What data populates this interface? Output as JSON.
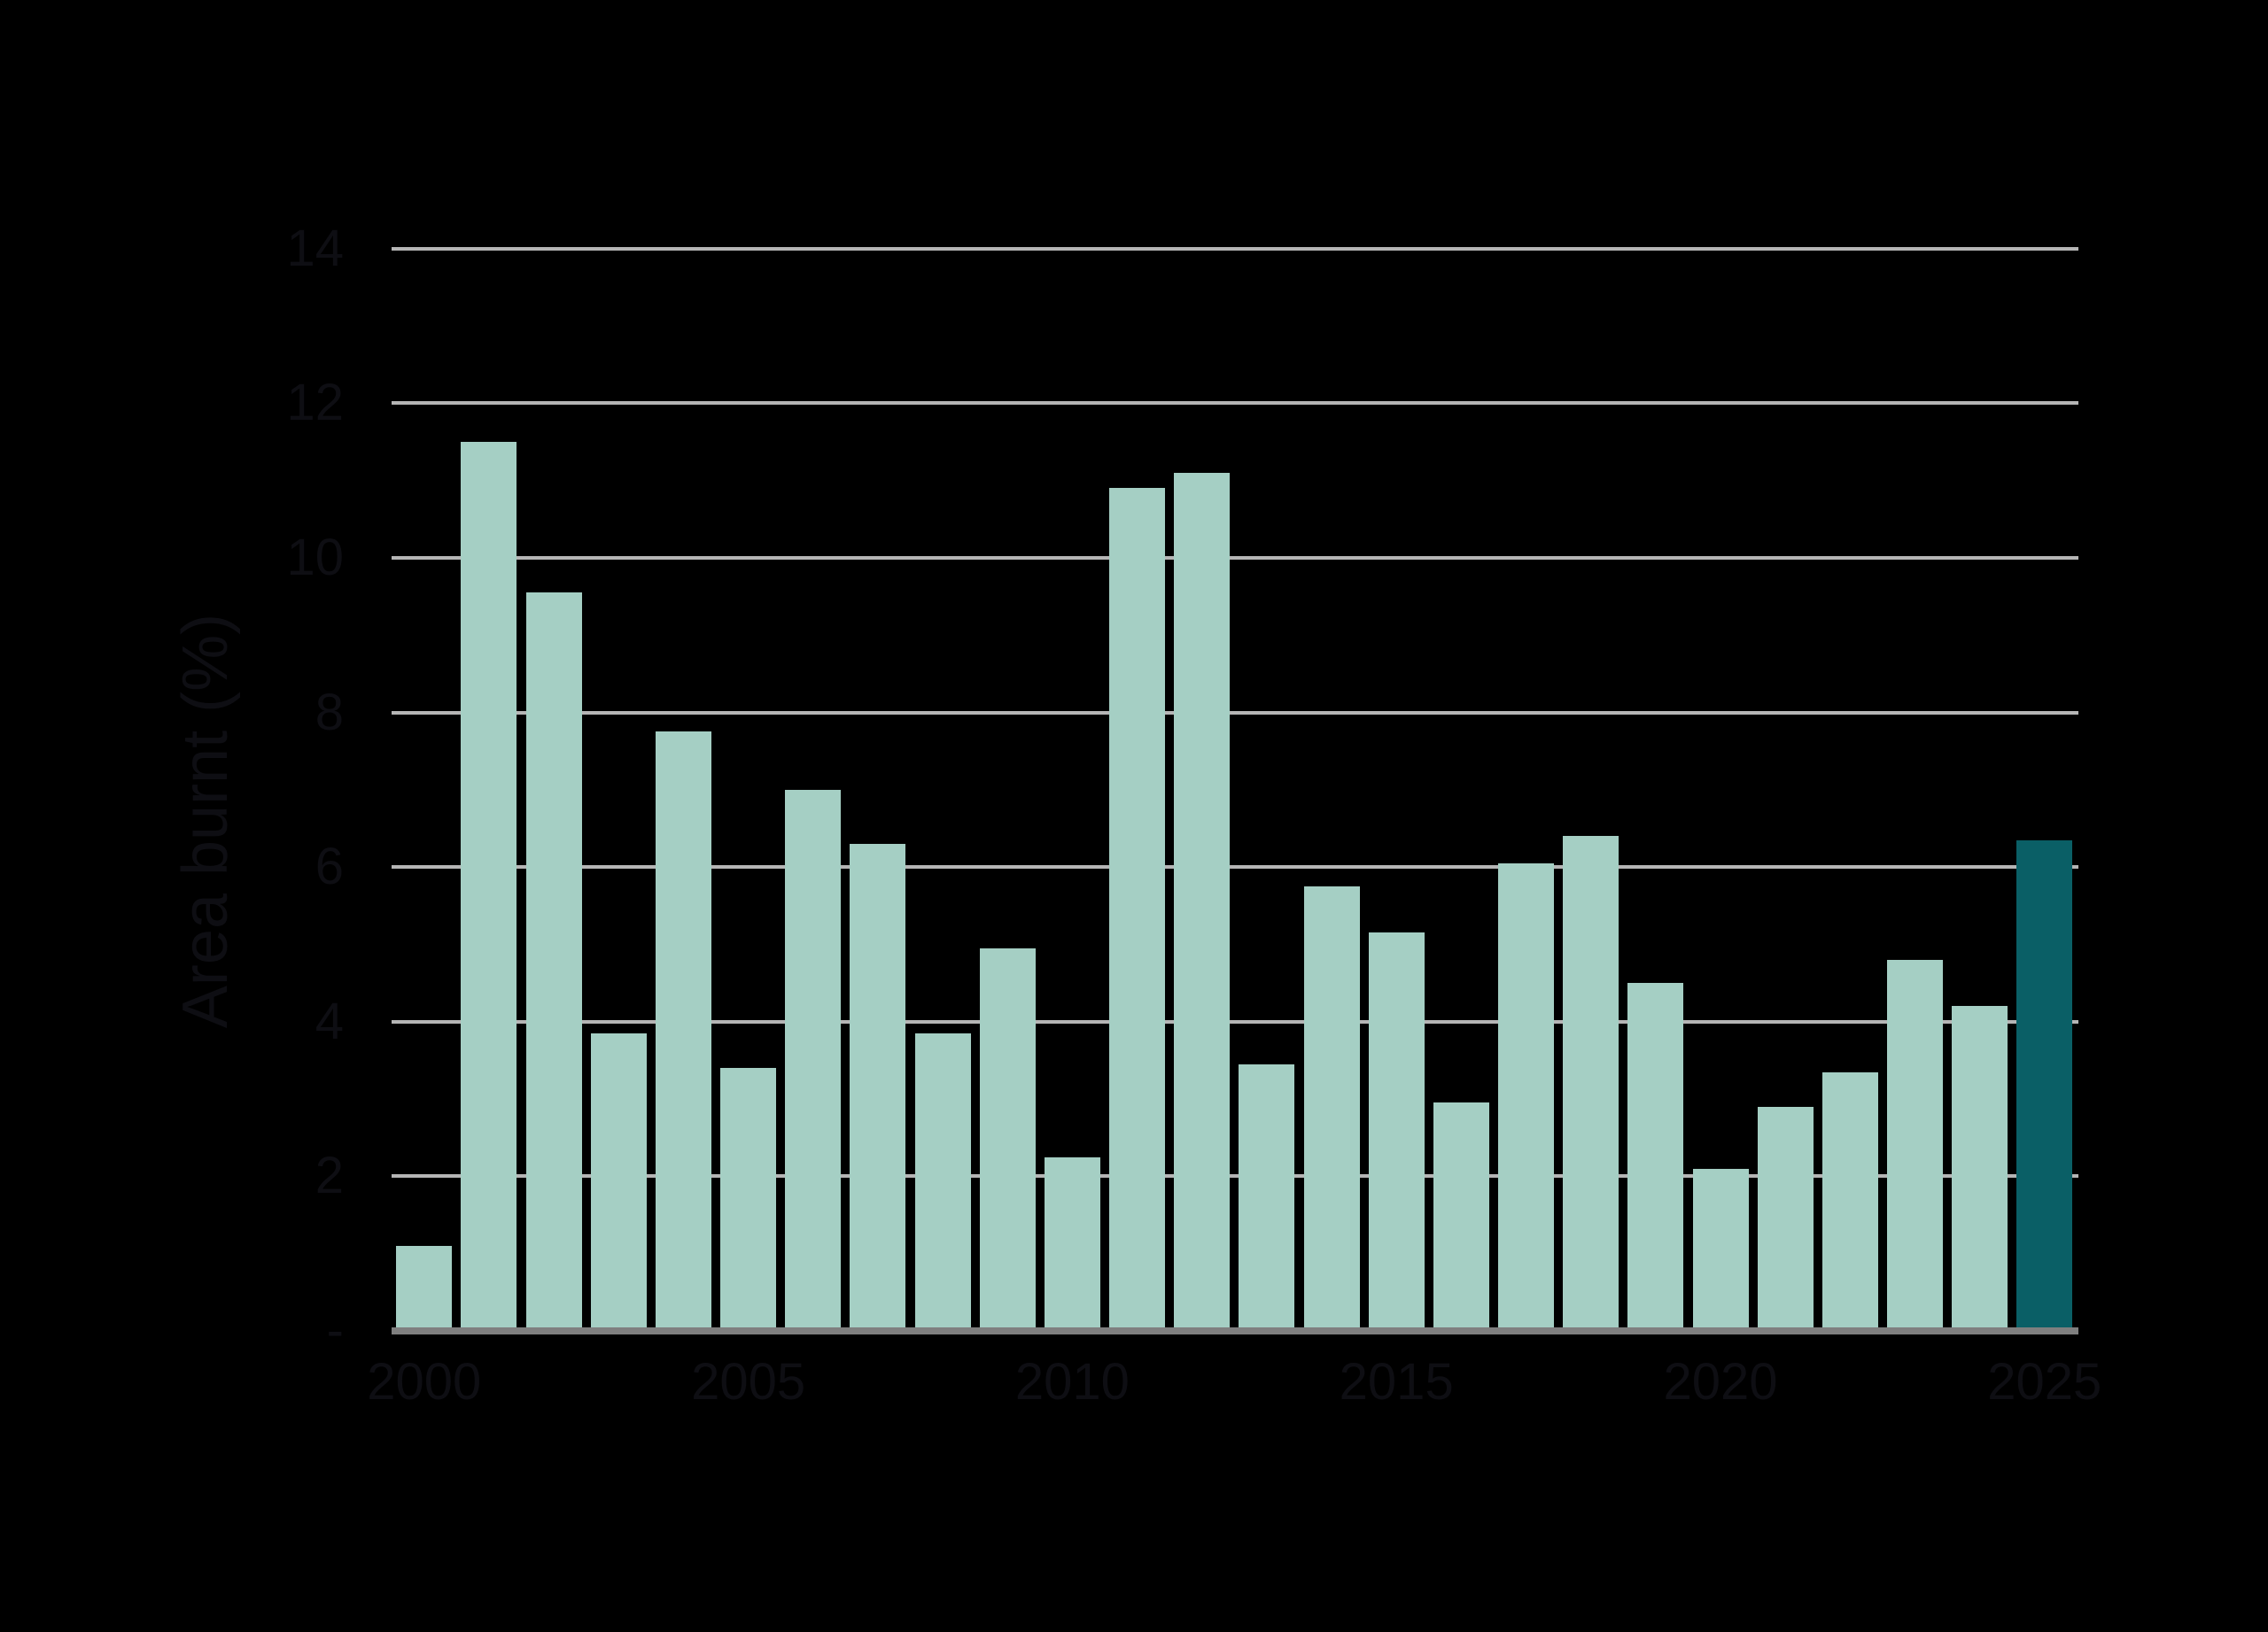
{
  "chart_data": {
    "type": "bar",
    "title": "",
    "xlabel": "",
    "ylabel": "Area burnt (%)",
    "categories": [
      2000,
      2001,
      2002,
      2003,
      2004,
      2005,
      2006,
      2007,
      2008,
      2009,
      2010,
      2011,
      2012,
      2013,
      2014,
      2015,
      2016,
      2017,
      2018,
      2019,
      2020,
      2021,
      2022,
      2023,
      2024,
      2025
    ],
    "values": [
      1.1,
      11.5,
      9.55,
      3.85,
      7.75,
      3.4,
      7.0,
      6.3,
      3.85,
      4.95,
      2.25,
      10.9,
      11.1,
      3.45,
      5.75,
      5.15,
      2.95,
      6.05,
      6.4,
      4.5,
      2.1,
      2.9,
      3.35,
      4.8,
      4.2,
      6.35
    ],
    "ylim": [
      0,
      14
    ],
    "yticks": [
      2,
      4,
      6,
      8,
      10,
      12,
      14
    ],
    "zero_tick_label": "-",
    "xticks": [
      2000,
      2005,
      2010,
      2015,
      2020,
      2025
    ],
    "grid": "horizontal",
    "legend": "none",
    "highlight_category": 2025
  },
  "colors": {
    "background": "#000000",
    "bar": "#a5cfc4",
    "bar_highlight": "#0a5f66",
    "gridline": "#b5b5b5",
    "axis_line": "#7f7f7f",
    "text": "#0e0e13"
  }
}
